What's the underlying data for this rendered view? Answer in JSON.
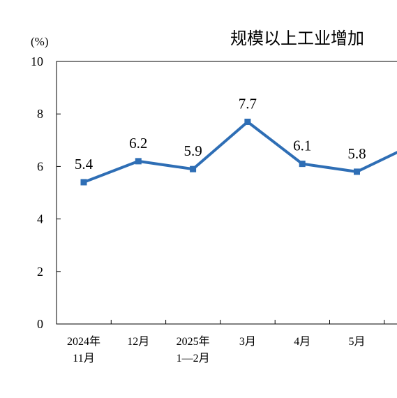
{
  "chart_data": {
    "type": "line",
    "title": "规模以上工业增加",
    "ylabel": "(%)",
    "ylim": [
      0,
      10
    ],
    "yticks": [
      "0",
      "2",
      "4",
      "6",
      "8",
      "10"
    ],
    "grid": false,
    "categories": [
      [
        "2024年",
        "11月"
      ],
      [
        "12月"
      ],
      [
        "2025年",
        "1—2月"
      ],
      [
        "3月"
      ],
      [
        "4月"
      ],
      [
        "5月"
      ],
      [
        ""
      ]
    ],
    "series": [
      {
        "values": [
          5.4,
          6.2,
          5.9,
          7.7,
          6.1,
          5.8,
          6.8
        ],
        "labels": [
          "5.4",
          "6.2",
          "5.9",
          "7.7",
          "6.1",
          "5.8",
          ""
        ],
        "color": "#2e6eb5"
      }
    ]
  }
}
